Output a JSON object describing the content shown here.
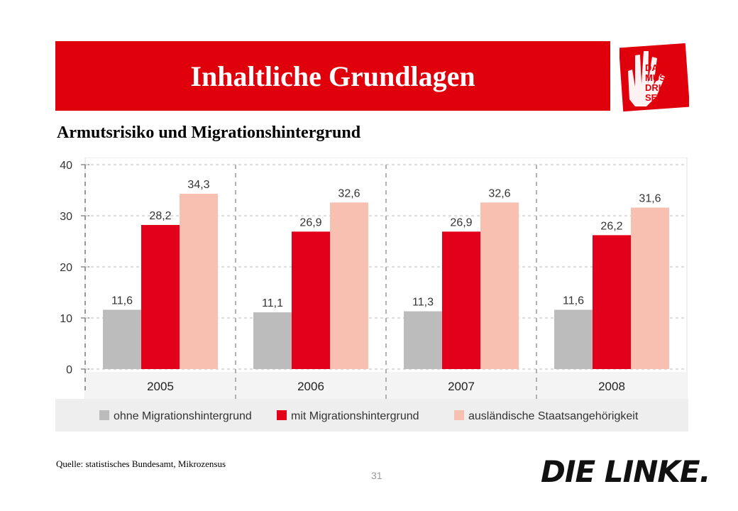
{
  "header": {
    "title": "Inhaltliche Grundlagen"
  },
  "logo": {
    "lines": [
      "DAS",
      "MUSS",
      "DRIN",
      "SEIN."
    ]
  },
  "subtitle": "Armutsrisiko und Migrationshintergrund",
  "colors": {
    "banner": "#e0000b",
    "series1": "#bcbcbc",
    "series2": "#e2001a",
    "series3": "#f7c0b0",
    "axis_bg": "#eeeeee"
  },
  "chart_data": {
    "type": "bar",
    "categories": [
      "2005",
      "2006",
      "2007",
      "2008"
    ],
    "ylim": [
      0,
      40
    ],
    "yticks": [
      0,
      10,
      20,
      30,
      40
    ],
    "grid": true,
    "legend_position": "bottom",
    "series": [
      {
        "name": "ohne Migrationshintergrund",
        "values": [
          11.6,
          11.1,
          11.3,
          11.6
        ],
        "labels": [
          "11,6",
          "11,1",
          "11,3",
          "11,6"
        ]
      },
      {
        "name": "mit Migrationshintergrund",
        "values": [
          28.2,
          26.9,
          26.9,
          26.2
        ],
        "labels": [
          "28,2",
          "26,9",
          "26,9",
          "26,2"
        ]
      },
      {
        "name": "ausländische Staatsangehörigkeit",
        "values": [
          34.3,
          32.6,
          32.6,
          31.6
        ],
        "labels": [
          "34,3",
          "32,6",
          "32,6",
          "31,6"
        ]
      }
    ]
  },
  "footer": {
    "source": "Quelle: statistisches Bundesamt, Mikrozensus",
    "page_number": "31",
    "brand": "DIE LINKE."
  }
}
